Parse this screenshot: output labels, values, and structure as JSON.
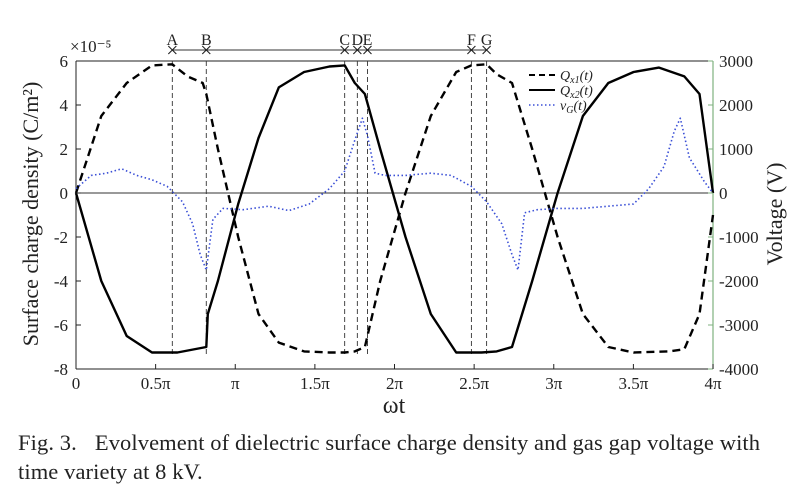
{
  "chart_data": {
    "type": "line",
    "xlabel": "ωt",
    "ylabel_left": "Surface charge density (C/m²)",
    "ylabel_right": "Voltage (V)",
    "left_axis_exponent": "×10⁻⁵",
    "xlim": [
      0,
      12.566
    ],
    "ylim_left": [
      -8,
      6
    ],
    "ylim_right": [
      -4000,
      3000
    ],
    "x_ticks": [
      {
        "value": 0,
        "label": "0"
      },
      {
        "value": 1.5708,
        "label": "0.5π"
      },
      {
        "value": 3.1416,
        "label": "π"
      },
      {
        "value": 4.7124,
        "label": "1.5π"
      },
      {
        "value": 6.2832,
        "label": "2π"
      },
      {
        "value": 7.854,
        "label": "2.5π"
      },
      {
        "value": 9.4248,
        "label": "3π"
      },
      {
        "value": 10.9956,
        "label": "3.5π"
      },
      {
        "value": 12.5664,
        "label": "4π"
      }
    ],
    "y_ticks_left": [
      -8,
      -6,
      -4,
      -2,
      0,
      2,
      4,
      6
    ],
    "y_ticks_right": [
      -4000,
      -3000,
      -2000,
      -1000,
      0,
      1000,
      2000,
      3000
    ],
    "legend_position": "top-right",
    "series": [
      {
        "name": "Q_x1(t)",
        "name_base": "Q",
        "name_sub": "x1",
        "name_tail": "(t)",
        "axis": "left",
        "style": "dashed",
        "color": "#000000",
        "x": [
          0,
          0.5,
          1.0,
          1.5,
          1.9,
          2.2,
          2.5,
          2.57,
          2.8,
          3.2,
          3.6,
          4.0,
          4.5,
          5.0,
          5.3,
          5.5,
          5.7,
          6.0,
          6.5,
          7.0,
          7.5,
          7.8,
          8.1,
          8.3,
          8.6,
          9.0,
          9.5,
          10.0,
          10.5,
          11.0,
          11.7,
          12.0,
          12.3,
          12.566
        ],
        "y": [
          0,
          3.5,
          5.0,
          5.8,
          5.85,
          5.3,
          5.0,
          4.5,
          2.0,
          -2.0,
          -5.5,
          -6.8,
          -7.2,
          -7.25,
          -7.25,
          -7.2,
          -7.0,
          -4.0,
          0,
          3.5,
          5.5,
          5.8,
          5.85,
          5.4,
          5.0,
          2.0,
          -2.0,
          -5.5,
          -7.0,
          -7.25,
          -7.2,
          -7.1,
          -5.5,
          -1.0
        ]
      },
      {
        "name": "Q_x2(t)",
        "name_base": "Q",
        "name_sub": "x2",
        "name_tail": "(t)",
        "axis": "left",
        "style": "solid",
        "color": "#000000",
        "x": [
          0,
          0.5,
          1.0,
          1.5,
          2.0,
          2.57,
          2.6,
          2.8,
          3.2,
          3.6,
          4.0,
          4.5,
          5.0,
          5.3,
          5.5,
          5.7,
          6.0,
          6.5,
          7.0,
          7.5,
          8.0,
          8.3,
          8.6,
          9.0,
          9.5,
          10.0,
          10.5,
          11.0,
          11.5,
          12.0,
          12.3,
          12.566
        ],
        "y": [
          0,
          -4.0,
          -6.5,
          -7.25,
          -7.25,
          -7.0,
          -5.5,
          -4.0,
          -0.5,
          2.5,
          4.8,
          5.5,
          5.75,
          5.8,
          5.0,
          4.5,
          2.0,
          -2.0,
          -5.5,
          -7.25,
          -7.25,
          -7.2,
          -7.0,
          -4.0,
          0,
          3.5,
          5.0,
          5.5,
          5.7,
          5.3,
          4.5,
          0
        ]
      },
      {
        "name": "v_G(t)",
        "name_base": "v",
        "name_sub": "G",
        "name_tail": "(t)",
        "axis": "right",
        "style": "dotted",
        "color": "#3a4fd6",
        "x": [
          0,
          0.3,
          0.6,
          0.9,
          1.2,
          1.5,
          1.8,
          2.1,
          2.3,
          2.45,
          2.57,
          2.7,
          2.9,
          3.3,
          3.8,
          4.2,
          4.6,
          5.0,
          5.3,
          5.5,
          5.65,
          5.75,
          5.9,
          6.1,
          6.5,
          7.0,
          7.4,
          7.8,
          8.1,
          8.4,
          8.6,
          8.72,
          8.85,
          9.1,
          9.5,
          10.0,
          10.5,
          11.0,
          11.3,
          11.6,
          11.8,
          11.92,
          12.1,
          12.4,
          12.566
        ],
        "y": [
          100,
          400,
          450,
          550,
          400,
          300,
          150,
          -200,
          -700,
          -1400,
          -1750,
          -600,
          -350,
          -380,
          -300,
          -400,
          -250,
          100,
          500,
          1200,
          1700,
          1300,
          450,
          400,
          400,
          450,
          400,
          150,
          -200,
          -700,
          -1400,
          -1750,
          -450,
          -380,
          -350,
          -350,
          -300,
          -250,
          100,
          600,
          1400,
          1700,
          800,
          250,
          0
        ]
      }
    ],
    "markers": [
      {
        "label": "A",
        "x": 1.9
      },
      {
        "label": "B",
        "x": 2.57
      },
      {
        "label": "C",
        "x": 5.3
      },
      {
        "label": "D",
        "x": 5.55
      },
      {
        "label": "E",
        "x": 5.75
      },
      {
        "label": "F",
        "x": 7.8
      },
      {
        "label": "G",
        "x": 8.1
      }
    ]
  },
  "caption": {
    "label": "Fig. 3.",
    "text": "Evolvement of dielectric surface charge density and gas gap voltage with time variety at 8 kV."
  },
  "colors": {
    "right_axis": "#7fb27f",
    "vg_series": "#3a4fd6"
  }
}
